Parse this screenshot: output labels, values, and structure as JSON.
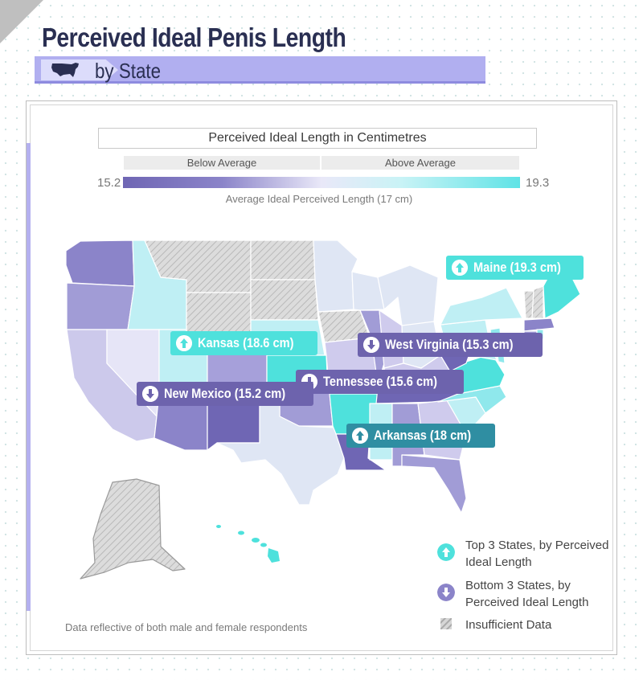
{
  "title": "Perceived Ideal Penis Length",
  "subtitle": "by State",
  "legend": {
    "title": "Perceived Ideal Length in Centimetres",
    "below_label": "Below Average",
    "above_label": "Above Average",
    "min_value": "15.2",
    "max_value": "19.3",
    "average_note": "Average Ideal Perceived Length (17 cm)"
  },
  "colors": {
    "low": "#6f66b4",
    "mid": "#e9e8f8",
    "high": "#5fe3e6",
    "top_callout": "#4ee1dc",
    "bottom_callout": "#6d63ad",
    "insufficient": "#d9d9d9"
  },
  "callouts": [
    {
      "label": "Maine (19.3 cm)",
      "state": "Maine",
      "value_cm": 19.3,
      "type": "top",
      "icon": "arrow-up-icon"
    },
    {
      "label": "Kansas (18.6 cm)",
      "state": "Kansas",
      "value_cm": 18.6,
      "type": "top",
      "icon": "arrow-up-icon"
    },
    {
      "label": "West Virginia (15.3 cm)",
      "state": "West Virginia",
      "value_cm": 15.3,
      "type": "bottom",
      "icon": "arrow-down-icon"
    },
    {
      "label": "Tennessee (15.6 cm)",
      "state": "Tennessee",
      "value_cm": 15.6,
      "type": "bottom",
      "icon": "arrow-down-icon"
    },
    {
      "label": "New Mexico (15.2 cm)",
      "state": "New Mexico",
      "value_cm": 15.2,
      "type": "bottom",
      "icon": "arrow-down-icon"
    },
    {
      "label": "Arkansas (18 cm)",
      "state": "Arkansas",
      "value_cm": 18,
      "type": "top",
      "icon": "arrow-up-icon"
    }
  ],
  "key": {
    "top": "Top 3 States, by Perceived Ideal Length",
    "bottom": "Bottom 3 States, by Perceived Ideal Length",
    "insufficient": "Insufficient Data"
  },
  "footnote": "Data reflective of both male and female respondents"
}
